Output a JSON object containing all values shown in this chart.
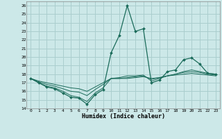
{
  "xlabel": "Humidex (Indice chaleur)",
  "bg_color": "#cce8e8",
  "grid_color": "#aacece",
  "line_color": "#1a6b5a",
  "xlim": [
    -0.5,
    23.5
  ],
  "ylim": [
    14,
    26.5
  ],
  "xticks": [
    0,
    1,
    2,
    3,
    4,
    5,
    6,
    7,
    8,
    9,
    10,
    11,
    12,
    13,
    14,
    15,
    16,
    17,
    18,
    19,
    20,
    21,
    22,
    23
  ],
  "yticks": [
    14,
    15,
    16,
    17,
    18,
    19,
    20,
    21,
    22,
    23,
    24,
    25,
    26
  ],
  "series": [
    [
      17.5,
      17.0,
      16.5,
      16.3,
      15.8,
      15.3,
      15.2,
      14.5,
      15.6,
      16.2,
      20.5,
      22.5,
      26.0,
      23.0,
      23.3,
      17.0,
      17.3,
      18.3,
      18.5,
      19.7,
      19.9,
      19.2,
      18.1,
      18.0
    ],
    [
      17.5,
      17.0,
      16.6,
      16.4,
      16.0,
      15.5,
      15.3,
      14.8,
      15.8,
      16.4,
      17.5,
      17.6,
      17.8,
      17.8,
      17.9,
      17.2,
      17.5,
      17.8,
      18.0,
      18.3,
      18.5,
      18.3,
      18.1,
      18.0
    ],
    [
      17.5,
      17.1,
      16.8,
      16.6,
      16.3,
      16.0,
      15.9,
      15.5,
      16.2,
      16.8,
      17.5,
      17.5,
      17.6,
      17.7,
      17.8,
      17.4,
      17.6,
      17.8,
      18.0,
      18.2,
      18.3,
      18.2,
      18.0,
      17.9
    ],
    [
      17.5,
      17.2,
      17.0,
      16.8,
      16.6,
      16.4,
      16.3,
      16.0,
      16.5,
      17.0,
      17.5,
      17.5,
      17.5,
      17.6,
      17.7,
      17.5,
      17.6,
      17.8,
      17.9,
      18.0,
      18.1,
      18.0,
      17.9,
      17.8
    ]
  ]
}
